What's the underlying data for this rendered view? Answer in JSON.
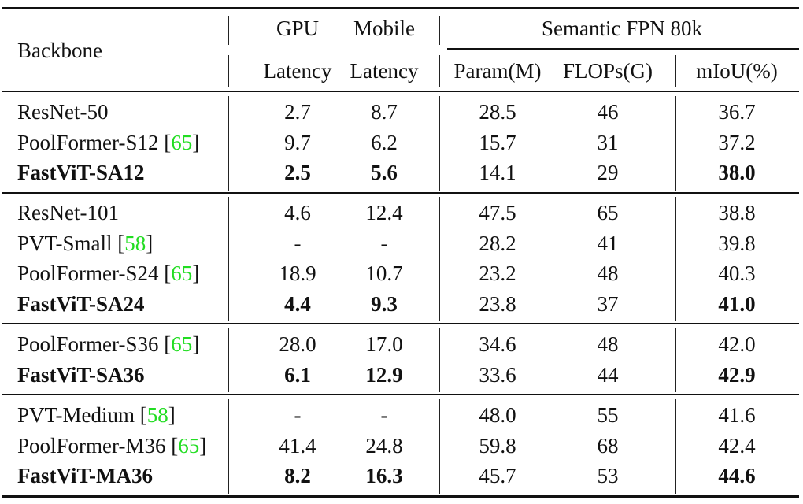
{
  "table": {
    "header": {
      "backbone": "Backbone",
      "gpu_top": "GPU",
      "mobile_top": "Mobile",
      "gpu_bottom": "Latency",
      "mobile_bottom": "Latency",
      "group": "Semantic FPN 80k",
      "param": "Param(M)",
      "flops": "FLOPs(G)",
      "miou": "mIoU(%)"
    },
    "groups": [
      {
        "rows": [
          {
            "name": "ResNet-50",
            "cite": "",
            "gpu": "2.7",
            "mobile": "8.7",
            "param": "28.5",
            "flops": "46",
            "miou": "36.7",
            "bold": false
          },
          {
            "name": "PoolFormer-S12",
            "cite": "65",
            "gpu": "9.7",
            "mobile": "6.2",
            "param": "15.7",
            "flops": "31",
            "miou": "37.2",
            "bold": false
          },
          {
            "name": "FastViT-SA12",
            "cite": "",
            "gpu": "2.5",
            "mobile": "5.6",
            "param": "14.1",
            "flops": "29",
            "miou": "38.0",
            "bold": true
          }
        ]
      },
      {
        "rows": [
          {
            "name": "ResNet-101",
            "cite": "",
            "gpu": "4.6",
            "mobile": "12.4",
            "param": "47.5",
            "flops": "65",
            "miou": "38.8",
            "bold": false
          },
          {
            "name": "PVT-Small",
            "cite": "58",
            "gpu": "-",
            "mobile": "-",
            "param": "28.2",
            "flops": "41",
            "miou": "39.8",
            "bold": false
          },
          {
            "name": "PoolFormer-S24",
            "cite": "65",
            "gpu": "18.9",
            "mobile": "10.7",
            "param": "23.2",
            "flops": "48",
            "miou": "40.3",
            "bold": false
          },
          {
            "name": "FastViT-SA24",
            "cite": "",
            "gpu": "4.4",
            "mobile": "9.3",
            "param": "23.8",
            "flops": "37",
            "miou": "41.0",
            "bold": true
          }
        ]
      },
      {
        "rows": [
          {
            "name": "PoolFormer-S36",
            "cite": "65",
            "gpu": "28.0",
            "mobile": "17.0",
            "param": "34.6",
            "flops": "48",
            "miou": "42.0",
            "bold": false
          },
          {
            "name": "FastViT-SA36",
            "cite": "",
            "gpu": "6.1",
            "mobile": "12.9",
            "param": "33.6",
            "flops": "44",
            "miou": "42.9",
            "bold": true
          }
        ]
      },
      {
        "rows": [
          {
            "name": "PVT-Medium",
            "cite": "58",
            "gpu": "-",
            "mobile": "-",
            "param": "48.0",
            "flops": "55",
            "miou": "41.6",
            "bold": false
          },
          {
            "name": "PoolFormer-M36",
            "cite": "65",
            "gpu": "41.4",
            "mobile": "24.8",
            "param": "59.8",
            "flops": "68",
            "miou": "42.4",
            "bold": false
          },
          {
            "name": "FastViT-MA36",
            "cite": "",
            "gpu": "8.2",
            "mobile": "16.3",
            "param": "45.7",
            "flops": "53",
            "miou": "44.6",
            "bold": true
          }
        ]
      }
    ]
  },
  "colors": {
    "citation": "#22dd22",
    "text": "#111111",
    "rule": "#111111"
  }
}
